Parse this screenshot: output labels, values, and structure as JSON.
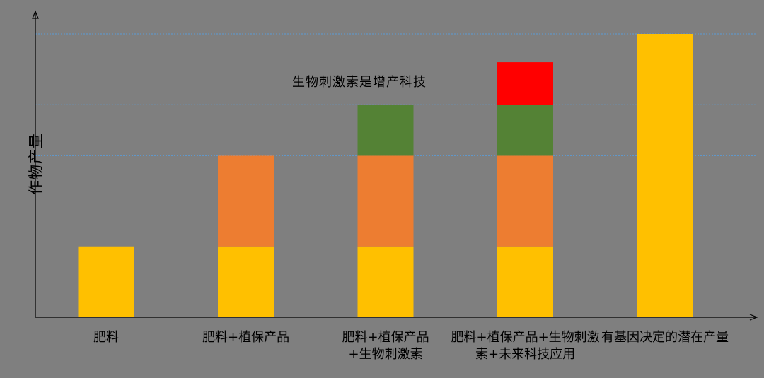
{
  "chart_data": {
    "type": "bar",
    "stacked": true,
    "ylabel": "作物产量",
    "annotation": "生物刺激素是增产科技",
    "categories": [
      [
        "肥料"
      ],
      [
        "肥料+植保产品"
      ],
      [
        "肥料+植保产品",
        "+生物刺激素"
      ],
      [
        "肥料+植保产品+生物刺激",
        "素+未来科技应用"
      ],
      [
        "有基因决定的潜在产量"
      ]
    ],
    "series": [
      {
        "color": "#ffc000",
        "values": [
          100,
          100,
          100,
          100,
          400
        ]
      },
      {
        "color": "#ed7d31",
        "values": [
          0,
          128,
          128,
          128,
          0
        ]
      },
      {
        "color": "#548235",
        "values": [
          0,
          0,
          72,
          72,
          0
        ]
      },
      {
        "color": "#ff0000",
        "values": [
          0,
          0,
          0,
          60,
          0
        ]
      }
    ],
    "ylim": [
      0,
      400
    ],
    "gridlines": [
      228,
      300,
      400
    ],
    "grid_style": "dotted-blue",
    "axis_color": "#000000"
  }
}
